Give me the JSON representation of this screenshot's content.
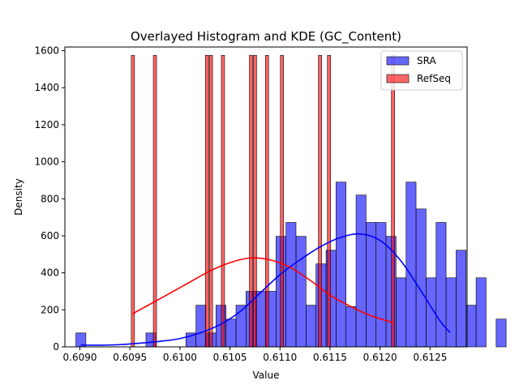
{
  "chart_data": {
    "type": "histogram-kde",
    "title": "Overlayed Histogram and KDE (GC_Content)",
    "xlabel": "Value",
    "ylabel": "Density",
    "xlim": [
      0.60885,
      0.61287
    ],
    "ylim": [
      0,
      1620
    ],
    "x_ticks": [
      0.609,
      0.6095,
      0.61,
      0.6105,
      0.611,
      0.6115,
      0.612,
      0.6125
    ],
    "x_tick_labels": [
      "0.6090",
      "0.6095",
      "0.6100",
      "0.6105",
      "0.6110",
      "0.6115",
      "0.6120",
      "0.6125"
    ],
    "y_ticks": [
      0,
      200,
      400,
      600,
      800,
      1000,
      1200,
      1400,
      1600
    ],
    "y_tick_labels": [
      "0",
      "200",
      "400",
      "600",
      "800",
      "1000",
      "1200",
      "1400",
      "1600"
    ],
    "grid": false,
    "legend_position": "top-right",
    "series": [
      {
        "name": "SRA",
        "color": "#0000ff",
        "bin_width": 9.95e-05,
        "bins": [
          [
            0.60901,
            75
          ],
          [
            0.60971,
            75
          ],
          [
            0.61011,
            75
          ],
          [
            0.61021,
            225
          ],
          [
            0.61031,
            75
          ],
          [
            0.61041,
            225
          ],
          [
            0.61051,
            150
          ],
          [
            0.61061,
            225
          ],
          [
            0.61071,
            300
          ],
          [
            0.61081,
            300
          ],
          [
            0.61091,
            300
          ],
          [
            0.61101,
            597
          ],
          [
            0.61111,
            672
          ],
          [
            0.61121,
            597
          ],
          [
            0.61131,
            225
          ],
          [
            0.61141,
            448
          ],
          [
            0.61151,
            522
          ],
          [
            0.61161,
            890
          ],
          [
            0.61171,
            218
          ],
          [
            0.61181,
            820
          ],
          [
            0.61191,
            672
          ],
          [
            0.61201,
            672
          ],
          [
            0.61211,
            597
          ],
          [
            0.61221,
            373
          ],
          [
            0.61231,
            890
          ],
          [
            0.61241,
            745
          ],
          [
            0.61251,
            373
          ],
          [
            0.61261,
            672
          ],
          [
            0.61271,
            373
          ],
          [
            0.61281,
            522
          ],
          [
            0.61291,
            225
          ],
          [
            0.61301,
            373
          ],
          [
            0.61321,
            150
          ]
        ],
        "kde_x": [
          0.60901,
          0.6092,
          0.6094,
          0.6096,
          0.6098,
          0.61,
          0.6102,
          0.6104,
          0.6106,
          0.6108,
          0.611,
          0.6112,
          0.6114,
          0.6116,
          0.6118,
          0.612,
          0.6122,
          0.6124,
          0.6126,
          0.6127
        ],
        "kde_y": [
          10,
          9,
          12,
          20,
          30,
          45,
          75,
          120,
          190,
          290,
          390,
          470,
          540,
          590,
          610,
          575,
          470,
          310,
          140,
          78
        ]
      },
      {
        "name": "RefSeq",
        "color": "#ff0000",
        "bin_width": 3.22e-05,
        "bins": [
          [
            0.60953,
            1575
          ],
          [
            0.60975,
            1575
          ],
          [
            0.61027,
            1575
          ],
          [
            0.61031,
            1575
          ],
          [
            0.61043,
            1575
          ],
          [
            0.61071,
            1575
          ],
          [
            0.61075,
            1575
          ],
          [
            0.61087,
            1575
          ],
          [
            0.61102,
            1575
          ],
          [
            0.6114,
            1575
          ],
          [
            0.61149,
            1575
          ],
          [
            0.61213,
            1575
          ]
        ],
        "kde_x": [
          0.60953,
          0.6097,
          0.6099,
          0.6101,
          0.6103,
          0.6105,
          0.6107,
          0.6109,
          0.6111,
          0.6113,
          0.6115,
          0.6117,
          0.6119,
          0.6121,
          0.61213
        ],
        "kde_y": [
          180,
          230,
          290,
          350,
          410,
          455,
          480,
          470,
          430,
          360,
          280,
          220,
          170,
          135,
          125
        ]
      }
    ]
  }
}
